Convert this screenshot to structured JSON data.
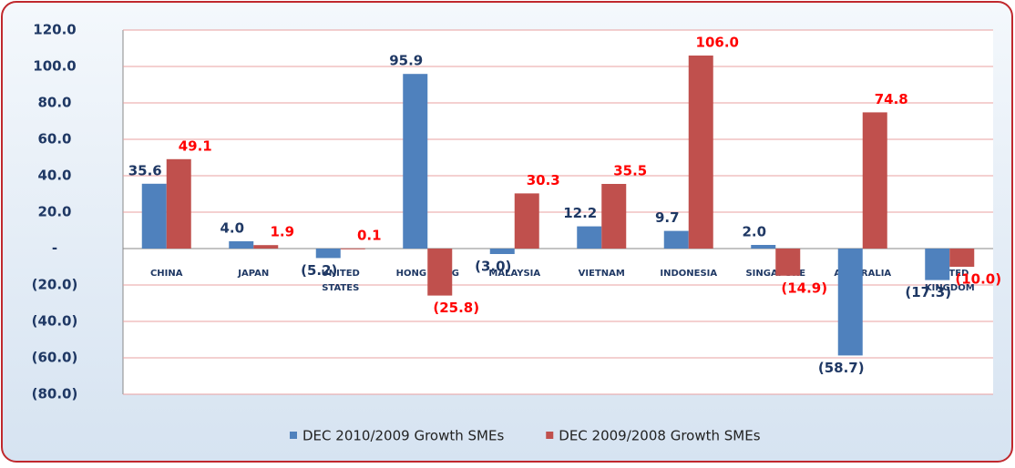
{
  "chart_data": {
    "type": "bar",
    "categories": [
      "CHINA",
      "JAPAN",
      [
        "UNITED",
        "STATES"
      ],
      "HONG KONG",
      "MALAYSIA",
      "VIETNAM",
      "INDONESIA",
      "SINGAPORE",
      "AUSTRALIA",
      [
        "UNITED",
        "KINGDOM"
      ]
    ],
    "series": [
      {
        "name": "DEC 2010/2009 Growth SMEs",
        "color": "#4f81bd",
        "label_color": "#1f3864",
        "values": [
          35.6,
          4.0,
          -5.2,
          95.9,
          -3.0,
          12.2,
          9.7,
          2.0,
          -58.7,
          -17.3
        ],
        "value_labels": [
          "35.6",
          "4.0",
          "(5.2)",
          "95.9",
          "(3.0)",
          "12.2",
          "9.7",
          "2.0",
          "(58.7)",
          "(17.3)"
        ]
      },
      {
        "name": "DEC 2009/2008 Growth SMEs",
        "color": "#c0504d",
        "label_color": "#ff0000",
        "values": [
          49.1,
          1.9,
          0.1,
          -25.8,
          30.3,
          35.5,
          106.0,
          -14.9,
          74.8,
          -10.0
        ],
        "value_labels": [
          "49.1",
          "1.9",
          "0.1",
          "(25.8)",
          "30.3",
          "35.5",
          "106.0",
          "(14.9)",
          "74.8",
          "(10.0)"
        ]
      }
    ],
    "ylim": [
      -80,
      120
    ],
    "yticks": [
      {
        "value": 120,
        "label": "120.0"
      },
      {
        "value": 100,
        "label": "100.0"
      },
      {
        "value": 80,
        "label": "80.0"
      },
      {
        "value": 60,
        "label": "60.0"
      },
      {
        "value": 40,
        "label": "40.0"
      },
      {
        "value": 20,
        "label": "20.0"
      },
      {
        "value": 0,
        "label": "-"
      },
      {
        "value": -20,
        "label": "(20.0)"
      },
      {
        "value": -40,
        "label": "(40.0)"
      },
      {
        "value": -60,
        "label": "(60.0)"
      },
      {
        "value": -80,
        "label": "(80.0)"
      }
    ],
    "grid": true,
    "legend": "bottom"
  }
}
